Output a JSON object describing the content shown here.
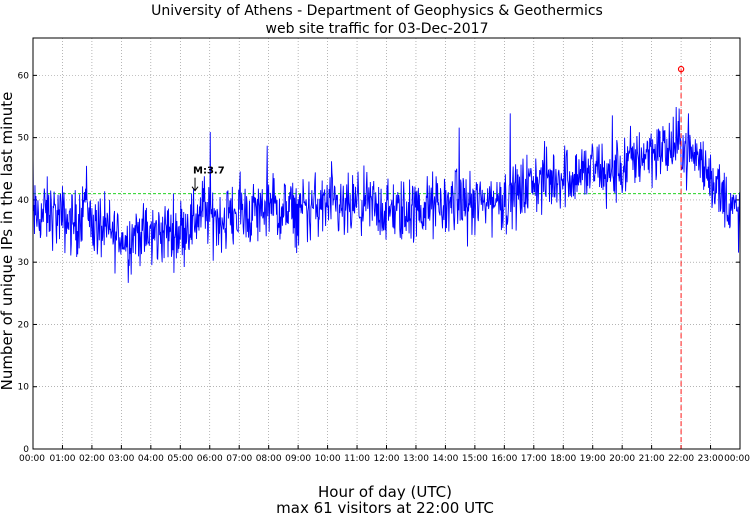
{
  "chart_data": {
    "type": "line",
    "title": "University of Athens - Department of Geophysics & Geothermics",
    "subtitle": "web site traffic for 03-Dec-2017",
    "xlabel": "Hour of day (UTC)",
    "caption": "max 61 visitors at 22:00 UTC",
    "ylabel": "Number of unique IPs in the last minute",
    "ylim": [
      0,
      66
    ],
    "yticks": [
      "0",
      "10",
      "20",
      "30",
      "40",
      "50",
      "60"
    ],
    "xticks": [
      "00:00",
      "01:00",
      "02:00",
      "03:00",
      "04:00",
      "05:00",
      "06:00",
      "07:00",
      "08:00",
      "09:00",
      "10:00",
      "11:00",
      "12:00",
      "13:00",
      "14:00",
      "15:00",
      "16:00",
      "17:00",
      "18:00",
      "19:00",
      "20:00",
      "21:00",
      "22:00",
      "23:00",
      "00:00"
    ],
    "grid": true,
    "series": [
      {
        "x_hours": [
          0,
          0.5,
          1,
          1.5,
          1.8,
          2,
          2.5,
          3,
          3.2,
          3.5,
          4,
          4.5,
          5,
          5.5,
          5.8,
          6,
          6.5,
          7,
          7.5,
          8,
          8.5,
          9,
          9.5,
          10,
          10.5,
          11,
          11.5,
          12,
          12.5,
          13,
          13.5,
          14,
          14.5,
          15,
          15.5,
          16,
          16.5,
          17,
          17.5,
          18,
          18.5,
          19,
          19.5,
          20,
          20.5,
          21,
          21.5,
          22,
          22.5,
          23,
          23.5,
          24
        ],
        "values": [
          37,
          38,
          37,
          36,
          41,
          36,
          35,
          34,
          33,
          35,
          34,
          35,
          35,
          37,
          39,
          37,
          37,
          38,
          38,
          39,
          38,
          38,
          39,
          39,
          38,
          39,
          39,
          38,
          38,
          38,
          39,
          39,
          40,
          39,
          40,
          40,
          41,
          43,
          43,
          44,
          44,
          45,
          44,
          45,
          47,
          48,
          48,
          49,
          47,
          44,
          40,
          37
        ],
        "color": "#0000ff"
      }
    ],
    "reference_line": {
      "value": 41,
      "color": "#00cc00"
    },
    "peak": {
      "x_hours": 22,
      "value": 61,
      "color": "#ff0000"
    },
    "marker": {
      "label": "M:3.7",
      "x_hours": 5.5,
      "value": 41
    }
  }
}
